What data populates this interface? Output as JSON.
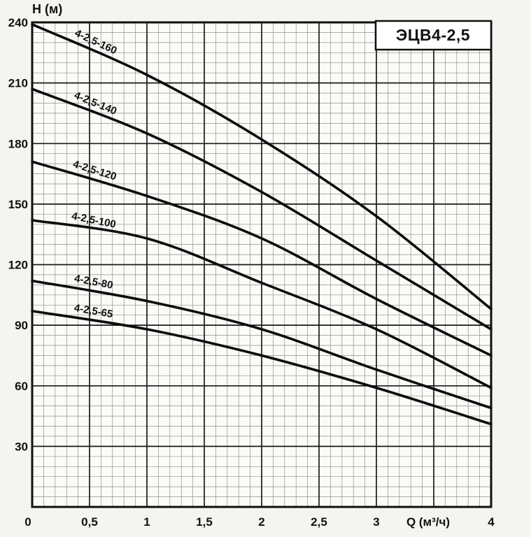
{
  "chart": {
    "title_box": "ЭЦВ4-2,5",
    "y_axis_label": "H (м)",
    "x_axis_label_inline": "Q (м³/ч)",
    "x_tick_labels": [
      "0",
      "0,5",
      "1",
      "1,5",
      "2",
      "2,5",
      "3",
      "4"
    ],
    "y_tick_labels": [
      "240",
      "210",
      "180",
      "150",
      "120",
      "90",
      "60",
      "30"
    ],
    "origin_label": "0",
    "colors": {
      "paper": "#f4f4f1",
      "plot_fill": "#fbfbf8",
      "grid_minor": "#8f8f8f",
      "grid_major": "#1a1a1a",
      "frame": "#0f0f0f",
      "curve": "#0c0c0c",
      "title_box_fill": "#ffffff"
    }
  },
  "chart_data": {
    "type": "line",
    "title": "ЭЦВ4-2,5",
    "xlabel": "Q (м³/ч)",
    "ylabel": "H (м)",
    "xlim": [
      0,
      4
    ],
    "ylim": [
      0,
      240
    ],
    "x_major_step": 0.5,
    "x_minor_step": 0.1,
    "y_major_step": 30,
    "y_minor_step": 5,
    "grid": true,
    "legend": "labels drawn along curves",
    "x_ticks": [
      0,
      0.5,
      1,
      1.5,
      2,
      2.5,
      3,
      4
    ],
    "y_ticks": [
      240,
      210,
      180,
      150,
      120,
      90,
      60,
      30
    ],
    "x": [
      0,
      1,
      2,
      3,
      4
    ],
    "series": [
      {
        "name": "4-2,5-160",
        "values": [
          239,
          214,
          182,
          144,
          98
        ]
      },
      {
        "name": "4-2,5-140",
        "values": [
          207,
          185,
          156,
          122,
          88
        ]
      },
      {
        "name": "4-2,5-120",
        "values": [
          171,
          154,
          133,
          103,
          75
        ]
      },
      {
        "name": "4-2,5-100",
        "values": [
          142,
          133,
          111,
          88,
          59
        ]
      },
      {
        "name": "4-2,5-80",
        "values": [
          112,
          102,
          88,
          68,
          49
        ]
      },
      {
        "name": "4-2,5-65",
        "values": [
          97,
          88,
          75,
          59,
          41
        ]
      }
    ]
  }
}
